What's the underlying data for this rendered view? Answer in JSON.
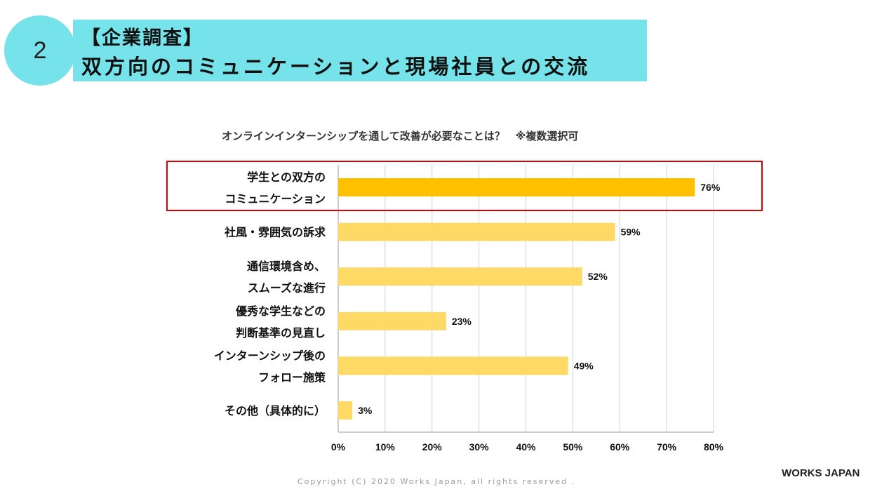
{
  "slide": {
    "number": "2",
    "title_line1": "【企業調査】",
    "title_line2": "双方向のコミュニケーションと現場社員との交流",
    "copyright": "Copyright (C) 2020 Works Japan, all rights reserved .",
    "logo": "WORKS JAPAN"
  },
  "colors": {
    "banner": "#76e3ea",
    "highlight_bar": "#ffc000",
    "bar": "#ffd966",
    "highlight_box": "#e00000"
  },
  "chart_data": {
    "type": "bar",
    "orientation": "horizontal",
    "title": "オンラインインターンシップを通して改善が必要なことは？　※複数選択可",
    "categories": [
      [
        "学生との双方の",
        "コミュニケーション"
      ],
      [
        "社風・雰囲気の訴求"
      ],
      [
        "通信環境含め、",
        "スムーズな進行"
      ],
      [
        "優秀な学生などの",
        "判断基準の見直し"
      ],
      [
        "インターンシップ後の",
        "フォロー施策"
      ],
      [
        "その他（具体的に）"
      ]
    ],
    "values": [
      76,
      59,
      52,
      23,
      49,
      3
    ],
    "value_labels": [
      "76%",
      "59%",
      "52%",
      "23%",
      "49%",
      "3%"
    ],
    "highlighted_index": 0,
    "xlim": [
      0,
      80
    ],
    "xticks": [
      "0%",
      "10%",
      "20%",
      "30%",
      "40%",
      "50%",
      "60%",
      "70%",
      "80%"
    ],
    "grid": true
  }
}
